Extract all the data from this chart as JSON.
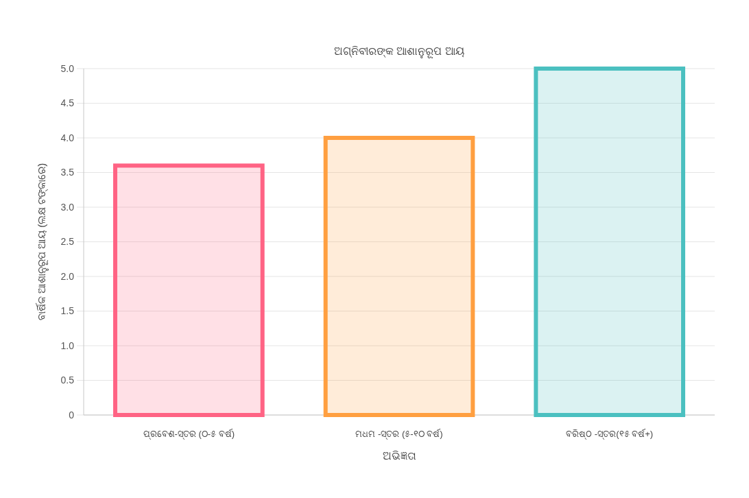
{
  "chart_data": {
    "type": "bar",
    "title": "ଅଗ୍ନିବୀରଙ୍କ ଆଶାନୁରୂପ ଆୟ",
    "xlabel": "ଅଭିଜ୍ଞତା",
    "ylabel": "ବାର୍ଷିକ ଆଶାନୁରୂପ ଆୟ (ଲକ୍ଷ ଟଙ୍କାରେ)",
    "categories": [
      "ପ୍ରବେଶ-ସ୍ତର (୦-୫ ବର୍ଷ)",
      "ମଧମ -ସ୍ତର (୫-୧୦ ବର୍ଷ)",
      "ବରିଷ୍ଠ -ସ୍ତର(୧୫ ବର୍ଷ+)"
    ],
    "values": [
      3.6,
      4.0,
      5.0
    ],
    "colors": [
      "#ff6384",
      "#ff9f40",
      "#4bc0c0"
    ],
    "ylim": [
      0,
      5
    ],
    "yticks": [
      0,
      0.5,
      {
        "value": 1,
        "label": "1.0"
      },
      1.5,
      {
        "value": 2,
        "label": "2.0"
      },
      2.5,
      {
        "value": 3,
        "label": "3.0"
      },
      3.5,
      {
        "value": 4,
        "label": "4.0"
      },
      4.5,
      {
        "value": 5,
        "label": "5.0"
      }
    ],
    "grid": "y"
  }
}
